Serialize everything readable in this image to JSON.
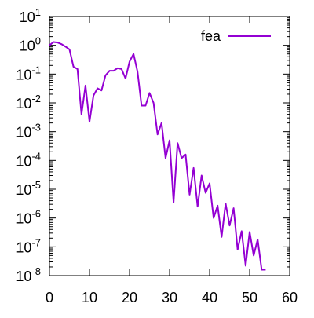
{
  "chart_data": {
    "type": "line",
    "title": "",
    "xlabel": "",
    "ylabel": "",
    "xlim": [
      0,
      60
    ],
    "ylim": [
      1e-08,
      10
    ],
    "yscale": "log",
    "grid": false,
    "legend_position": "top-right",
    "x_ticks": [
      {
        "value": 0,
        "label": "0"
      },
      {
        "value": 10,
        "label": "10"
      },
      {
        "value": 20,
        "label": "20"
      },
      {
        "value": 30,
        "label": "30"
      },
      {
        "value": 40,
        "label": "40"
      },
      {
        "value": 50,
        "label": "50"
      },
      {
        "value": 60,
        "label": "60"
      }
    ],
    "y_ticks": [
      {
        "exp": 1,
        "base": "10",
        "sup": "1"
      },
      {
        "exp": 0,
        "base": "10",
        "sup": "0"
      },
      {
        "exp": -1,
        "base": "10",
        "sup": "-1"
      },
      {
        "exp": -2,
        "base": "10",
        "sup": "-2"
      },
      {
        "exp": -3,
        "base": "10",
        "sup": "-3"
      },
      {
        "exp": -4,
        "base": "10",
        "sup": "-4"
      },
      {
        "exp": -5,
        "base": "10",
        "sup": "-5"
      },
      {
        "exp": -6,
        "base": "10",
        "sup": "-6"
      },
      {
        "exp": -7,
        "base": "10",
        "sup": "-7"
      },
      {
        "exp": -8,
        "base": "10",
        "sup": "-8"
      }
    ],
    "series": [
      {
        "name": "fea",
        "color": "#9400d3",
        "x": [
          0,
          1,
          2,
          3,
          4,
          5,
          6,
          7,
          8,
          9,
          10,
          11,
          12,
          13,
          14,
          15,
          16,
          17,
          18,
          19,
          20,
          21,
          22,
          23,
          24,
          25,
          26,
          27,
          28,
          29,
          30,
          31,
          32,
          33,
          34,
          35,
          36,
          37,
          38,
          39,
          40,
          41,
          42,
          43,
          44,
          45,
          46,
          47,
          48,
          49,
          50,
          51,
          52,
          53,
          54
        ],
        "y": [
          1.0,
          1.3,
          1.25,
          1.1,
          0.9,
          0.72,
          0.18,
          0.15,
          0.004,
          0.04,
          0.0022,
          0.018,
          0.032,
          0.027,
          0.09,
          0.13,
          0.13,
          0.16,
          0.15,
          0.07,
          0.27,
          0.5,
          0.12,
          0.008,
          0.008,
          0.022,
          0.01,
          0.0008,
          0.002,
          0.00012,
          0.0005,
          3.5e-06,
          0.0004,
          0.00012,
          0.00016,
          6.5e-06,
          5.5e-05,
          2.5e-06,
          3e-05,
          7.5e-06,
          1.6e-05,
          1e-06,
          2.7e-06,
          2.2e-07,
          3.2e-06,
          5.5e-07,
          2.2e-06,
          8e-08,
          3.5e-07,
          2.2e-08,
          3.3e-07,
          5e-08,
          1.8e-07,
          1.6e-08,
          1.6e-08
        ]
      }
    ]
  }
}
